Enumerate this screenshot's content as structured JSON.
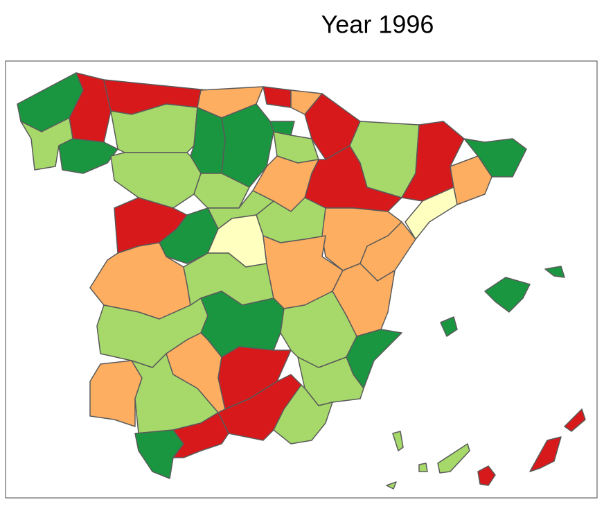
{
  "title": "Year 1996"
}
